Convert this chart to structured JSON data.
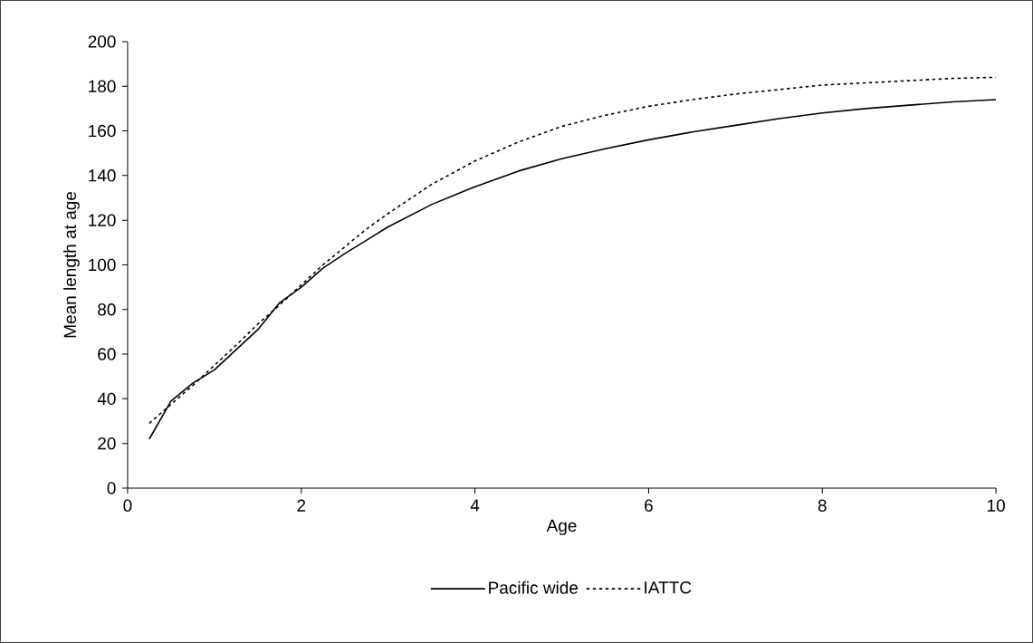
{
  "chart_data": {
    "type": "line",
    "xlabel": "Age",
    "ylabel": "Mean length at age",
    "x": [
      0.25,
      0.5,
      0.75,
      1,
      1.25,
      1.5,
      1.75,
      2,
      2.25,
      2.5,
      2.75,
      3,
      3.5,
      4,
      4.5,
      5,
      5.5,
      6,
      6.5,
      7,
      7.5,
      8,
      8.5,
      9,
      9.5,
      10
    ],
    "series": [
      {
        "name": "Pacific wide",
        "color": "#000000",
        "line_style": "solid",
        "values": [
          22,
          39,
          47,
          53,
          62,
          71,
          83,
          90,
          98.5,
          105,
          111,
          117,
          127,
          135,
          142,
          147.5,
          152,
          156,
          159.5,
          162.5,
          165.5,
          168,
          170,
          171.5,
          173,
          174
        ]
      },
      {
        "name": "IATTC",
        "color": "#000000",
        "line_style": "dashed",
        "values": [
          29,
          37.5,
          46,
          55,
          64,
          73.5,
          82,
          91,
          100,
          108,
          116,
          123,
          136,
          146.5,
          155,
          162,
          167,
          171,
          174,
          176.5,
          178.5,
          180.5,
          181.5,
          182.5,
          183.5,
          184
        ]
      }
    ],
    "xlim": [
      0,
      10
    ],
    "xticks": [
      0,
      2,
      4,
      6,
      8,
      10
    ],
    "ylim": [
      0,
      200
    ],
    "yticks": [
      0,
      20,
      40,
      60,
      80,
      100,
      120,
      140,
      160,
      180,
      200
    ],
    "grid": false,
    "legend": "bottom"
  }
}
